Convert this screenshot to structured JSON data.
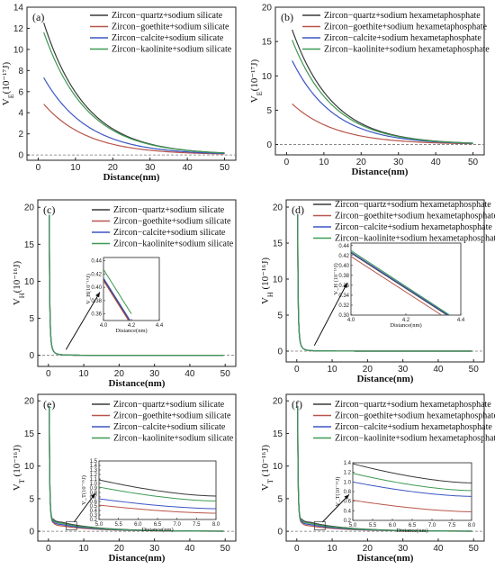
{
  "chart_data": [
    {
      "type": "line",
      "panel_label": "(a)",
      "xlabel": "Distance(nm)",
      "ylabel_main": "V",
      "ylabel_sub": "E",
      "ylabel_unit": "(10⁻¹⁷J)",
      "xlim": [
        -3,
        53
      ],
      "ylim": [
        -0.5,
        14
      ],
      "xticks": [
        0,
        10,
        20,
        30,
        40,
        50
      ],
      "yticks": [
        0,
        2,
        4,
        6,
        8,
        10,
        12,
        14
      ],
      "series": [
        {
          "name": "Zircon−quartz+sodium silicate",
          "color": "#3a3a3a",
          "a": 12.5,
          "k": 0.088
        },
        {
          "name": "Zircon−goethite+sodium silicate",
          "color": "#b8554a",
          "a": 4.8,
          "k": 0.085
        },
        {
          "name": "Zircon−calcite+sodium silicate",
          "color": "#3c55c4",
          "a": 7.3,
          "k": 0.085
        },
        {
          "name": "Zircon−kaolinite+sodium silicate",
          "color": "#3d9a52",
          "a": 11.6,
          "k": 0.087
        }
      ]
    },
    {
      "type": "line",
      "panel_label": "(b)",
      "xlabel": "Distance(nm)",
      "ylabel_main": "V",
      "ylabel_sub": "E",
      "ylabel_unit": "(10⁻¹⁷J)",
      "xlim": [
        -3,
        53
      ],
      "ylim": [
        -1.5,
        20
      ],
      "xticks": [
        0,
        10,
        20,
        30,
        40,
        50
      ],
      "yticks": [
        0,
        5,
        10,
        15,
        20
      ],
      "series": [
        {
          "name": "Zircon−quartz+sodium hexametaphosphate",
          "color": "#3a3a3a",
          "a": 16.7,
          "k": 0.092
        },
        {
          "name": "Zircon−goethite+sodium hexametaphosphate",
          "color": "#b8554a",
          "a": 5.9,
          "k": 0.085
        },
        {
          "name": "Zircon−calcite+sodium hexametaphosphate",
          "color": "#3c55c4",
          "a": 12.2,
          "k": 0.09
        },
        {
          "name": "Zircon−kaolinite+sodium hexametaphosphate",
          "color": "#3d9a52",
          "a": 15.2,
          "k": 0.091
        }
      ]
    },
    {
      "type": "line",
      "panel_label": "(c)",
      "xlabel": "Distance(nm)",
      "ylabel_main": "V",
      "ylabel_sub": "H",
      "ylabel_unit": "(10⁻¹⁶J)",
      "xlim": [
        -3,
        53
      ],
      "ylim": [
        -1.5,
        21
      ],
      "xticks": [
        0,
        10,
        20,
        30,
        40,
        50
      ],
      "yticks": [
        0,
        5,
        10,
        15,
        20
      ],
      "series": [
        {
          "name": "Zircon−quartz+sodium silicate",
          "color": "#3a3a3a",
          "a": 19.0,
          "k": 0.0
        },
        {
          "name": "Zircon−goethite+sodium silicate",
          "color": "#b8554a",
          "a": 19.0,
          "k": 0.0
        },
        {
          "name": "Zircon−calcite+sodium silicate",
          "color": "#3c55c4",
          "a": 19.0,
          "k": 0.0
        },
        {
          "name": "Zircon−kaolinite+sodium silicate",
          "color": "#3d9a52",
          "a": 19.0,
          "k": 0.0
        }
      ],
      "inset": {
        "xlabel": "Distance(nm)",
        "ylabel": "V_H(10⁻¹⁶J)",
        "xlim": [
          4.0,
          4.4
        ],
        "ylim": [
          0.35,
          0.445
        ],
        "xticks": [
          "4.0",
          "4.2",
          "4.4"
        ],
        "xtickvals": [
          4.0,
          4.2,
          4.4
        ],
        "yticks": [
          "0.36",
          "0.38",
          "0.40",
          "0.42",
          "0.44"
        ],
        "ytickvals": [
          0.36,
          0.38,
          0.4,
          0.42,
          0.44
        ],
        "series": [
          {
            "color": "#3a3a3a",
            "p0": [
              4.0,
              0.412
            ],
            "p1": [
              4.2,
              0.345
            ]
          },
          {
            "color": "#b8554a",
            "p0": [
              4.0,
              0.41
            ],
            "p1": [
              4.2,
              0.343
            ]
          },
          {
            "color": "#3c55c4",
            "p0": [
              4.0,
              0.414
            ],
            "p1": [
              4.2,
              0.347
            ]
          },
          {
            "color": "#3d9a52",
            "p0": [
              4.0,
              0.427
            ],
            "p1": [
              4.2,
              0.36
            ]
          }
        ]
      }
    },
    {
      "type": "line",
      "panel_label": "(d)",
      "xlabel": "Distance(nm)",
      "ylabel_main": "V",
      "ylabel_sub": "H",
      "ylabel_unit": " (10⁻¹⁶J)",
      "xlim": [
        -3,
        53
      ],
      "ylim": [
        -1.5,
        21
      ],
      "xticks": [
        0,
        10,
        20,
        30,
        40,
        50
      ],
      "yticks": [
        0,
        5,
        10,
        15,
        20
      ],
      "series": [
        {
          "name": "Zircon−quartz+sodium hexametaphosphate",
          "color": "#3a3a3a",
          "a": 19.0,
          "k": 0.0
        },
        {
          "name": "Zircon−goethite+sodium hexametaphosphate",
          "color": "#b8554a",
          "a": 19.0,
          "k": 0.0
        },
        {
          "name": "Zircon−calcite+sodium hexametaphosphate",
          "color": "#3c55c4",
          "a": 19.0,
          "k": 0.0
        },
        {
          "name": "Zircon−kaolinite+sodium hexametaphosphate",
          "color": "#3d9a52",
          "a": 19.0,
          "k": 0.0
        }
      ],
      "inset": {
        "xlabel": "Distance(nm)",
        "ylabel": "V_H (10⁻¹⁶J)",
        "xlim": [
          4.0,
          4.4
        ],
        "ylim": [
          0.3,
          0.445
        ],
        "xticks": [
          "4.0",
          "4.2",
          "4.4"
        ],
        "xtickvals": [
          4.0,
          4.2,
          4.4
        ],
        "yticks": [
          "0.30",
          "0.32",
          "0.34",
          "0.36",
          "0.38",
          "0.40",
          "0.42",
          "0.44"
        ],
        "ytickvals": [
          0.3,
          0.32,
          0.34,
          0.36,
          0.38,
          0.4,
          0.42,
          0.44
        ],
        "series": [
          {
            "color": "#3a3a3a",
            "p0": [
              4.0,
              0.425
            ],
            "p1": [
              4.35,
              0.3
            ]
          },
          {
            "color": "#b8554a",
            "p0": [
              4.0,
              0.418
            ],
            "p1": [
              4.33,
              0.3
            ]
          },
          {
            "color": "#3c55c4",
            "p0": [
              4.0,
              0.427
            ],
            "p1": [
              4.355,
              0.3
            ]
          },
          {
            "color": "#3d9a52",
            "p0": [
              4.0,
              0.43
            ],
            "p1": [
              4.36,
              0.3
            ]
          }
        ]
      }
    },
    {
      "type": "line",
      "panel_label": "(e)",
      "xlabel": "Distance(nm)",
      "ylabel_main": "V",
      "ylabel_sub": "T",
      "ylabel_unit": " (10⁻¹⁶J)",
      "xlim": [
        -3,
        53
      ],
      "ylim": [
        -1.5,
        21
      ],
      "xticks": [
        0,
        10,
        20,
        30,
        40,
        50
      ],
      "yticks": [
        0,
        5,
        10,
        15,
        20
      ],
      "series": [
        {
          "name": "Zircon−quartz+sodium silicate",
          "color": "#3a3a3a",
          "a": 19.0,
          "k": 0.088
        },
        {
          "name": "Zircon−goethite+sodium silicate",
          "color": "#b8554a",
          "a": 19.0,
          "k": 0.085
        },
        {
          "name": "Zircon−calcite+sodium silicate",
          "color": "#3c55c4",
          "a": 19.0,
          "k": 0.085
        },
        {
          "name": "Zircon−kaolinite+sodium silicate",
          "color": "#3d9a52",
          "a": 19.0,
          "k": 0.087
        }
      ],
      "inset": {
        "xlabel": "Distance(nm)",
        "ylabel": "V_T(10⁻¹⁶J)",
        "xlim": [
          5.0,
          8.0
        ],
        "ylim": [
          0.2,
          1.5
        ],
        "xticks": [
          "5.0",
          "5.5",
          "6.0",
          "6.5",
          "7.0",
          "7.5",
          "8.0"
        ],
        "xtickvals": [
          5.0,
          5.5,
          6.0,
          6.5,
          7.0,
          7.5,
          8.0
        ],
        "yticks": [
          "0.2",
          "0.3",
          "0.4",
          "0.5",
          "0.6",
          "0.7",
          "0.8",
          "0.9",
          "1.0",
          "1.1",
          "1.2",
          "1.3",
          "1.4",
          "1.5"
        ],
        "ytickvals": [
          0.2,
          0.3,
          0.4,
          0.5,
          0.6,
          0.7,
          0.8,
          0.9,
          1.0,
          1.1,
          1.2,
          1.3,
          1.4,
          1.5
        ],
        "series": [
          {
            "color": "#3a3a3a",
            "v0": 1.08,
            "v1": 0.72
          },
          {
            "color": "#b8554a",
            "v0": 0.52,
            "v1": 0.34
          },
          {
            "color": "#3c55c4",
            "v0": 0.66,
            "v1": 0.44
          },
          {
            "color": "#3d9a52",
            "v0": 0.92,
            "v1": 0.61
          }
        ]
      }
    },
    {
      "type": "line",
      "panel_label": "(f)",
      "xlabel": "Distance(nm)",
      "ylabel_main": "V",
      "ylabel_sub": "T",
      "ylabel_unit": " (10⁻¹⁶J)",
      "xlim": [
        -3,
        53
      ],
      "ylim": [
        -1.5,
        21
      ],
      "xticks": [
        0,
        10,
        20,
        30,
        40,
        50
      ],
      "yticks": [
        0,
        5,
        10,
        15,
        20
      ],
      "series": [
        {
          "name": "Zircon−quartz+sodium hexametaphosphate",
          "color": "#3a3a3a",
          "a": 19.0,
          "k": 0.092
        },
        {
          "name": "Zircon−goethite+sodium hexametaphosphate",
          "color": "#b8554a",
          "a": 19.0,
          "k": 0.085
        },
        {
          "name": "Zircon−calcite+sodium hexametaphosphate",
          "color": "#3c55c4",
          "a": 19.0,
          "k": 0.09
        },
        {
          "name": "Zircon−kaolinite+sodium hexametaphosphate",
          "color": "#3d9a52",
          "a": 19.0,
          "k": 0.091
        }
      ],
      "inset": {
        "xlabel": "Distance(nm)",
        "ylabel": "V_T(10⁻¹⁶J)",
        "xlim": [
          5.0,
          8.0
        ],
        "ylim": [
          0.2,
          1.4
        ],
        "xticks": [
          "5.0",
          "5.5",
          "6.0",
          "6.5",
          "7.0",
          "7.5",
          "8.0"
        ],
        "xtickvals": [
          5.0,
          5.5,
          6.0,
          6.5,
          7.0,
          7.5,
          8.0
        ],
        "yticks": [
          "0.2",
          "0.4",
          "0.6",
          "0.8",
          "1.0",
          "1.2",
          "1.4"
        ],
        "ytickvals": [
          0.2,
          0.4,
          0.6,
          0.8,
          1.0,
          1.2,
          1.4
        ],
        "series": [
          {
            "color": "#3a3a3a",
            "v0": 1.38,
            "v1": 0.98
          },
          {
            "color": "#b8554a",
            "v0": 0.62,
            "v1": 0.38
          },
          {
            "color": "#3c55c4",
            "v0": 1.0,
            "v1": 0.7
          },
          {
            "color": "#3d9a52",
            "v0": 1.18,
            "v1": 0.82
          }
        ]
      }
    }
  ]
}
